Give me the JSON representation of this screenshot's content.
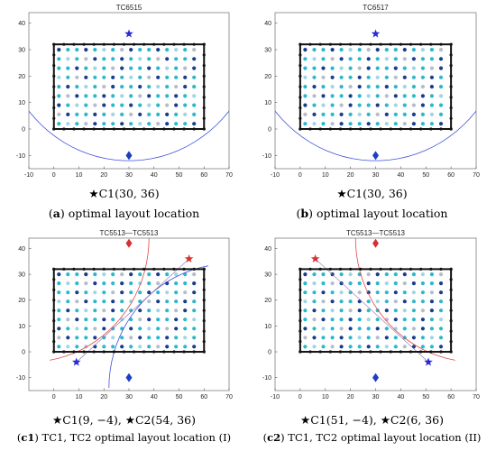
{
  "colors": {
    "frame": "#111111",
    "star": "#2a2ad6",
    "diamond": "#1f3cc4",
    "star_red": "#d63030",
    "diamond_red": "#d63030",
    "curve_blue": "#3d50e0",
    "curve_red": "#e04848",
    "dot_dark": "#1a3c8c",
    "dot_cyan": "#2bb8cc",
    "dot_light": "#9fd6e2",
    "dot_gray": "#b7bcc6"
  },
  "chart_data": [
    {
      "type": "scatter",
      "title": "TC6515",
      "xlim": [
        -10,
        70
      ],
      "ylim": [
        -15,
        44
      ],
      "xticks": [
        "-10",
        "0",
        "10",
        "20",
        "30",
        "40",
        "50",
        "60",
        "70"
      ],
      "yticks": [
        "-10",
        "0",
        "10",
        "20",
        "30",
        "40"
      ],
      "points": [
        {
          "kind": "star",
          "x": 30,
          "y": 36,
          "color": "blue"
        },
        {
          "kind": "diamond",
          "x": 30,
          "y": -10,
          "color": "blue"
        }
      ],
      "caption": {
        "sym": "★",
        "text": "C1(30, 36)",
        "label": "a",
        "suffix": "optimal layout location"
      }
    },
    {
      "type": "scatter",
      "title": "TC6517",
      "xlim": [
        -10,
        70
      ],
      "ylim": [
        -15,
        44
      ],
      "xticks": [
        "-10",
        "0",
        "10",
        "20",
        "30",
        "40",
        "50",
        "60",
        "70"
      ],
      "yticks": [
        "-10",
        "0",
        "10",
        "20",
        "30",
        "40"
      ],
      "points": [
        {
          "kind": "star",
          "x": 30,
          "y": 36,
          "color": "blue"
        },
        {
          "kind": "diamond",
          "x": 30,
          "y": -10,
          "color": "blue"
        }
      ],
      "caption": {
        "sym": "★",
        "text": "C1(30, 36)",
        "label": "b",
        "suffix": "optimal layout location"
      }
    },
    {
      "type": "scatter",
      "title": "TC5513—TC5513",
      "xlim": [
        -10,
        70
      ],
      "ylim": [
        -15,
        44
      ],
      "xticks": [
        "0",
        "10",
        "20",
        "30",
        "40",
        "50",
        "60",
        "70"
      ],
      "yticks": [
        "-10",
        "0",
        "10",
        "20",
        "30",
        "40"
      ],
      "points": [
        {
          "kind": "star",
          "x": 54,
          "y": 36,
          "color": "red"
        },
        {
          "kind": "diamond",
          "x": 30,
          "y": 42,
          "color": "red"
        },
        {
          "kind": "star",
          "x": 9,
          "y": -4,
          "color": "blue"
        },
        {
          "kind": "diamond",
          "x": 30,
          "y": -10,
          "color": "blue"
        }
      ],
      "caption": {
        "sym": "★",
        "text": "C1(9, −4), ★C2(54, 36)",
        "label": "c1",
        "suffix": "TC1, TC2 optimal layout location (I)"
      }
    },
    {
      "type": "scatter",
      "title": "TC5513—TC5513",
      "xlim": [
        -10,
        70
      ],
      "ylim": [
        -15,
        44
      ],
      "xticks": [
        "-10",
        "0",
        "10",
        "20",
        "30",
        "40",
        "50",
        "60",
        "70"
      ],
      "yticks": [
        "-10",
        "0",
        "10",
        "20",
        "30",
        "40"
      ],
      "points": [
        {
          "kind": "star",
          "x": 6,
          "y": 36,
          "color": "red"
        },
        {
          "kind": "diamond",
          "x": 30,
          "y": 42,
          "color": "red"
        },
        {
          "kind": "star",
          "x": 51,
          "y": -4,
          "color": "blue"
        },
        {
          "kind": "diamond",
          "x": 30,
          "y": -10,
          "color": "blue"
        }
      ],
      "caption": {
        "sym": "★",
        "text": "C1(51, −4), ★C2(6, 36)",
        "label": "c2",
        "suffix": "TC1, TC2 optimal layout location (II)"
      }
    }
  ]
}
